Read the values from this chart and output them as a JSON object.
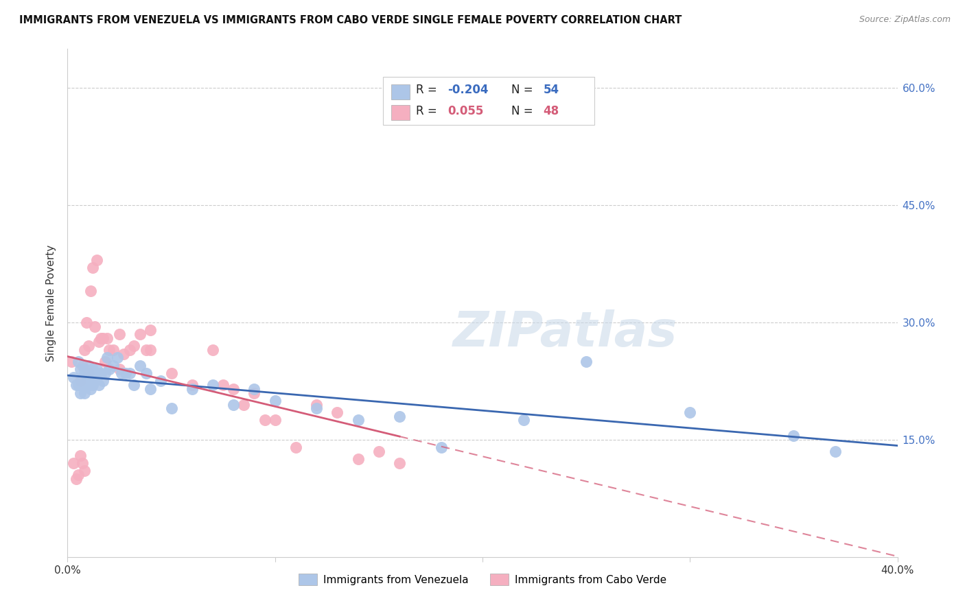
{
  "title": "IMMIGRANTS FROM VENEZUELA VS IMMIGRANTS FROM CABO VERDE SINGLE FEMALE POVERTY CORRELATION CHART",
  "source": "Source: ZipAtlas.com",
  "ylabel": "Single Female Poverty",
  "xlim": [
    0.0,
    0.4
  ],
  "ylim": [
    0.0,
    0.65
  ],
  "xticks": [
    0.0,
    0.1,
    0.2,
    0.3,
    0.4
  ],
  "xtick_labels": [
    "0.0%",
    "",
    "",
    "",
    "40.0%"
  ],
  "ytick_vals_right": [
    0.15,
    0.3,
    0.45,
    0.6
  ],
  "ytick_labels_right": [
    "15.0%",
    "30.0%",
    "45.0%",
    "60.0%"
  ],
  "venezuela_color": "#adc6e8",
  "cabo_verde_color": "#f5afc0",
  "venezuela_line_color": "#3a67b0",
  "cabo_verde_line_color": "#d45c78",
  "R_venezuela": -0.204,
  "N_venezuela": 54,
  "R_cabo_verde": 0.055,
  "N_cabo_verde": 48,
  "legend_label_venezuela": "Immigrants from Venezuela",
  "legend_label_cabo_verde": "Immigrants from Cabo Verde",
  "watermark": "ZIPatlas",
  "background_color": "#ffffff",
  "venezuela_x": [
    0.003,
    0.004,
    0.005,
    0.005,
    0.006,
    0.006,
    0.007,
    0.007,
    0.008,
    0.008,
    0.009,
    0.009,
    0.01,
    0.01,
    0.011,
    0.011,
    0.012,
    0.012,
    0.013,
    0.013,
    0.014,
    0.014,
    0.015,
    0.015,
    0.016,
    0.017,
    0.018,
    0.019,
    0.02,
    0.022,
    0.024,
    0.026,
    0.028,
    0.03,
    0.032,
    0.035,
    0.038,
    0.04,
    0.045,
    0.05,
    0.06,
    0.07,
    0.08,
    0.09,
    0.1,
    0.12,
    0.14,
    0.16,
    0.18,
    0.22,
    0.25,
    0.3,
    0.35,
    0.37
  ],
  "venezuela_y": [
    0.23,
    0.22,
    0.25,
    0.22,
    0.24,
    0.21,
    0.23,
    0.22,
    0.24,
    0.21,
    0.23,
    0.22,
    0.245,
    0.22,
    0.23,
    0.215,
    0.24,
    0.22,
    0.235,
    0.225,
    0.24,
    0.23,
    0.235,
    0.22,
    0.235,
    0.225,
    0.235,
    0.255,
    0.24,
    0.245,
    0.255,
    0.235,
    0.235,
    0.235,
    0.22,
    0.245,
    0.235,
    0.215,
    0.225,
    0.19,
    0.215,
    0.22,
    0.195,
    0.215,
    0.2,
    0.19,
    0.175,
    0.18,
    0.14,
    0.175,
    0.25,
    0.185,
    0.155,
    0.135
  ],
  "cabo_verde_x": [
    0.002,
    0.003,
    0.004,
    0.005,
    0.006,
    0.006,
    0.007,
    0.007,
    0.008,
    0.008,
    0.009,
    0.01,
    0.01,
    0.011,
    0.012,
    0.013,
    0.014,
    0.015,
    0.016,
    0.017,
    0.018,
    0.019,
    0.02,
    0.022,
    0.025,
    0.025,
    0.027,
    0.03,
    0.032,
    0.035,
    0.038,
    0.04,
    0.04,
    0.05,
    0.06,
    0.07,
    0.075,
    0.08,
    0.085,
    0.09,
    0.095,
    0.1,
    0.11,
    0.12,
    0.13,
    0.14,
    0.15,
    0.16
  ],
  "cabo_verde_y": [
    0.25,
    0.12,
    0.1,
    0.105,
    0.225,
    0.13,
    0.12,
    0.245,
    0.11,
    0.265,
    0.3,
    0.235,
    0.27,
    0.34,
    0.37,
    0.295,
    0.38,
    0.275,
    0.28,
    0.28,
    0.25,
    0.28,
    0.265,
    0.265,
    0.24,
    0.285,
    0.26,
    0.265,
    0.27,
    0.285,
    0.265,
    0.29,
    0.265,
    0.235,
    0.22,
    0.265,
    0.22,
    0.215,
    0.195,
    0.21,
    0.175,
    0.175,
    0.14,
    0.195,
    0.185,
    0.125,
    0.135,
    0.12
  ]
}
